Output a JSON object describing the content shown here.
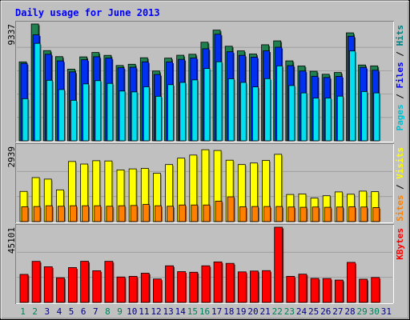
{
  "chart_data": [
    {
      "type": "bar",
      "title": "Daily usage for June 2013",
      "panel": "hits-files-pages",
      "ymax_label": "9337",
      "ylim": [
        0,
        9337
      ],
      "grid": true,
      "legend": {
        "placement": "right",
        "parts": [
          {
            "text": "Pages",
            "color": "#00c0d0"
          },
          {
            "text": "Files",
            "color": "#0000ff"
          },
          {
            "text": "Hits",
            "color": "#008080"
          }
        ],
        "separator": " / "
      },
      "categories": [
        "1",
        "2",
        "3",
        "4",
        "5",
        "6",
        "7",
        "8",
        "9",
        "10",
        "11",
        "12",
        "13",
        "14",
        "15",
        "16",
        "17",
        "18",
        "19",
        "20",
        "21",
        "22",
        "23",
        "24",
        "25",
        "26",
        "27",
        "28",
        "29",
        "30",
        "31"
      ],
      "series": [
        {
          "name": "Hits",
          "color": "#208050",
          "values": [
            6310,
            9337,
            7210,
            6730,
            5730,
            6710,
            7060,
            6830,
            6020,
            6120,
            6640,
            5580,
            6610,
            6840,
            6920,
            7880,
            8850,
            7560,
            7190,
            6940,
            7680,
            7990,
            6390,
            5980,
            5560,
            5320,
            5460,
            8630,
            6060,
            5990,
            0
          ]
        },
        {
          "name": "Files",
          "color": "#0030f0",
          "values": [
            6190,
            8470,
            6920,
            6390,
            5510,
            6480,
            6720,
            6610,
            5840,
            5880,
            6310,
            5300,
            6300,
            6510,
            6620,
            7360,
            8520,
            7120,
            6830,
            6690,
            7190,
            7480,
            6010,
            5580,
            5160,
            5060,
            5150,
            8360,
            5870,
            5640,
            0
          ]
        },
        {
          "name": "Pages",
          "color": "#00e0f0",
          "values": [
            3370,
            7790,
            4840,
            4100,
            3240,
            4550,
            4810,
            4590,
            3980,
            3910,
            4320,
            3560,
            4490,
            4670,
            4870,
            5780,
            6320,
            4960,
            4670,
            4310,
            4970,
            5990,
            4420,
            3830,
            3420,
            3420,
            3570,
            7180,
            3940,
            3830,
            0
          ]
        }
      ]
    },
    {
      "type": "bar",
      "panel": "visits-sites",
      "ymax_label": "2939",
      "ylim": [
        0,
        2939
      ],
      "grid": true,
      "legend": {
        "placement": "right",
        "parts": [
          {
            "text": "Sites",
            "color": "#ff8000"
          },
          {
            "text": "Visits",
            "color": "#ffff00"
          }
        ],
        "separator": " / "
      },
      "categories": [
        "1",
        "2",
        "3",
        "4",
        "5",
        "6",
        "7",
        "8",
        "9",
        "10",
        "11",
        "12",
        "13",
        "14",
        "15",
        "16",
        "17",
        "18",
        "19",
        "20",
        "21",
        "22",
        "23",
        "24",
        "25",
        "26",
        "27",
        "28",
        "29",
        "30",
        "31"
      ],
      "series": [
        {
          "name": "Visits",
          "color": "#ffff00",
          "values": [
            1180,
            1720,
            1660,
            1240,
            2350,
            2250,
            2380,
            2370,
            2020,
            2060,
            2080,
            1890,
            2230,
            2480,
            2600,
            2810,
            2780,
            2400,
            2230,
            2290,
            2390,
            2630,
            1060,
            1080,
            920,
            1010,
            1160,
            1070,
            1190,
            1170,
            0
          ]
        },
        {
          "name": "Sites",
          "color": "#ff8000",
          "values": [
            580,
            590,
            620,
            600,
            620,
            620,
            620,
            600,
            620,
            630,
            670,
            620,
            600,
            650,
            650,
            650,
            800,
            970,
            580,
            590,
            590,
            590,
            570,
            560,
            570,
            560,
            570,
            580,
            570,
            550,
            0
          ]
        }
      ]
    },
    {
      "type": "bar",
      "panel": "kbytes",
      "ymax_label": "45101",
      "ylim": [
        0,
        45101
      ],
      "grid": true,
      "legend": {
        "placement": "right",
        "parts": [
          {
            "text": "KBytes",
            "color": "#ff0000"
          }
        ],
        "separator": ""
      },
      "categories": [
        "1",
        "2",
        "3",
        "4",
        "5",
        "6",
        "7",
        "8",
        "9",
        "10",
        "11",
        "12",
        "13",
        "14",
        "15",
        "16",
        "17",
        "18",
        "19",
        "20",
        "21",
        "22",
        "23",
        "24",
        "25",
        "26",
        "27",
        "28",
        "29",
        "30",
        "31"
      ],
      "series": [
        {
          "name": "KBytes",
          "color": "#ff0000",
          "values": [
            16800,
            24620,
            21380,
            14800,
            20890,
            24670,
            19000,
            24640,
            15250,
            15630,
            17510,
            14030,
            21960,
            18460,
            18100,
            21960,
            24290,
            23420,
            18320,
            18810,
            19060,
            45101,
            15630,
            16940,
            14410,
            14330,
            13390,
            24010,
            13920,
            14970,
            0
          ]
        }
      ]
    }
  ],
  "x_label_colors": {
    "weekday": "#000080",
    "weekend": "#00805c"
  },
  "weekend_days": [
    "1",
    "2",
    "8",
    "9",
    "15",
    "16",
    "22",
    "23",
    "29",
    "30"
  ]
}
